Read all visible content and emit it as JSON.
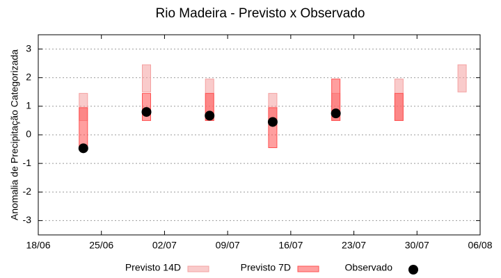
{
  "chart_data": {
    "type": "range-bar",
    "title": "Rio Madeira - Previsto x Observado",
    "y_label": "Anomalia de Precipitação Categorizada",
    "x": [
      "23/06",
      "30/06",
      "07/07",
      "14/07",
      "21/07",
      "28/07",
      "04/08"
    ],
    "xlim": [
      "18/06",
      "06/08"
    ],
    "xticks": [
      "18/06",
      "25/06",
      "02/07",
      "09/07",
      "16/07",
      "23/07",
      "30/07",
      "06/08"
    ],
    "ylim": [
      -3.5,
      3.5
    ],
    "yticks": [
      -3,
      -2,
      -1,
      0,
      1,
      2,
      3
    ],
    "grid": true,
    "series": [
      {
        "name": "Previsto 14D",
        "kind": "range",
        "color": "#f4a0a0",
        "low": [
          0.5,
          1.5,
          0.5,
          0.5,
          0.5,
          0.5,
          1.5
        ],
        "high": [
          1.45,
          2.45,
          1.95,
          1.45,
          1.45,
          1.95,
          2.45
        ]
      },
      {
        "name": "Previsto 7D",
        "kind": "range",
        "color": "#ff5050",
        "low": [
          -0.45,
          0.5,
          0.5,
          -0.45,
          0.5,
          0.5,
          null
        ],
        "high": [
          0.95,
          1.45,
          1.45,
          0.95,
          1.95,
          1.45,
          null
        ]
      },
      {
        "name": "Observado",
        "kind": "point",
        "color": "#000000",
        "values": [
          -0.47,
          0.8,
          0.67,
          0.45,
          0.75,
          null,
          null
        ]
      }
    ]
  }
}
